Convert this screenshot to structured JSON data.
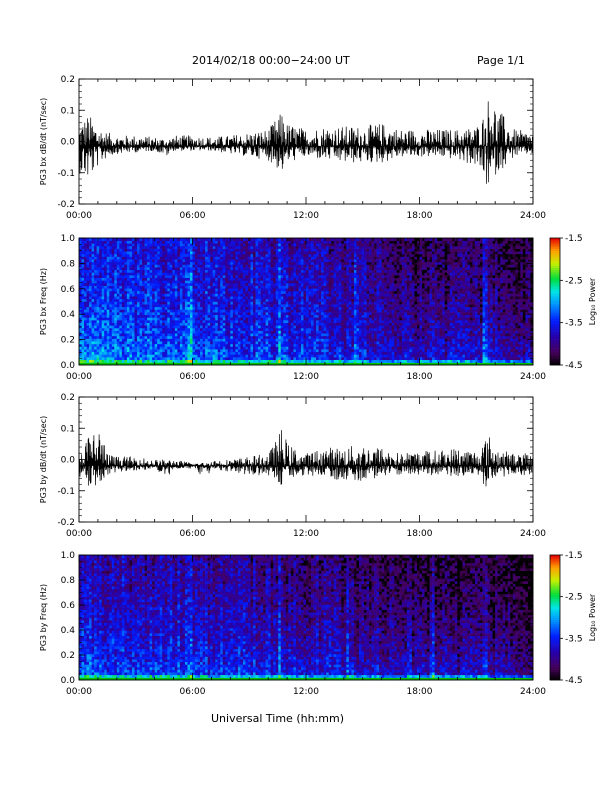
{
  "header": {
    "title": "2014/02/18   00:00−24:00 UT",
    "page": "Page 1/1"
  },
  "footer": {
    "xlabel": "Universal Time (hh:mm)"
  },
  "colorbar": {
    "label": "Log₁₀ Power",
    "ticks": [
      "-1.5",
      "-2.5",
      "-3.5",
      "-4.5"
    ],
    "range": [
      -4.5,
      -1.5
    ]
  },
  "x_ticks": [
    "00:00",
    "06:00",
    "12:00",
    "18:00",
    "24:00"
  ],
  "chart_data": [
    {
      "type": "line",
      "ylabel": "PG3 bx dB/dt (nT/sec)",
      "x_range_hours": [
        0,
        24
      ],
      "ylim": [
        -0.2,
        0.2
      ],
      "yticks": [
        "0.2",
        "0.1",
        "0.0",
        "-0.1",
        "-0.2"
      ],
      "baseline": -0.015,
      "series": [
        {
          "x_hours": [
            0.0,
            0.5,
            1.0,
            1.5,
            2.0,
            3.0,
            4.0,
            4.7,
            5.0,
            6.0,
            7.0,
            8.0,
            9.0,
            10.0,
            10.5,
            10.8,
            11.0,
            12.0,
            13.0,
            14.0,
            15.0,
            16.0,
            17.0,
            18.0,
            19.0,
            20.0,
            21.0,
            21.5,
            21.8,
            22.0,
            23.0,
            24.0
          ],
          "envelope_max": [
            0.06,
            0.09,
            0.05,
            0.03,
            0.02,
            0.02,
            0.015,
            0.01,
            0.02,
            0.02,
            0.015,
            0.02,
            0.03,
            0.04,
            0.08,
            0.1,
            0.06,
            0.04,
            0.05,
            0.05,
            0.05,
            0.06,
            0.04,
            0.04,
            0.04,
            0.04,
            0.05,
            0.1,
            0.2,
            0.12,
            0.04,
            0.03
          ],
          "envelope_min": [
            -0.1,
            -0.13,
            -0.08,
            -0.05,
            -0.04,
            -0.035,
            -0.03,
            -0.05,
            -0.03,
            -0.03,
            -0.03,
            -0.04,
            -0.05,
            -0.06,
            -0.09,
            -0.1,
            -0.07,
            -0.05,
            -0.06,
            -0.07,
            -0.07,
            -0.07,
            -0.05,
            -0.05,
            -0.05,
            -0.06,
            -0.08,
            -0.14,
            -0.18,
            -0.11,
            -0.05,
            -0.04
          ]
        }
      ]
    },
    {
      "type": "heatmap",
      "ylabel": "PG3 bx Freq (Hz)",
      "x_range_hours": [
        0,
        24
      ],
      "ylim": [
        0.0,
        1.0
      ],
      "yticks": [
        "1.0",
        "0.8",
        "0.6",
        "0.4",
        "0.2",
        "0.0"
      ],
      "colorbar_label": "Log₁₀ Power",
      "value_range": [
        -4.5,
        -1.5
      ],
      "description_levels": {
        "hours": [
          0,
          3,
          6,
          9,
          12,
          15,
          18,
          21,
          24
        ],
        "log_power_at_low_freq": [
          -2.6,
          -3.0,
          -3.0,
          -3.1,
          -3.2,
          -3.3,
          -3.4,
          -3.3,
          -3.5
        ],
        "log_power_at_high_freq": [
          -3.6,
          -3.7,
          -3.7,
          -3.8,
          -3.9,
          -4.0,
          -4.3,
          -4.2,
          -4.4
        ]
      },
      "bright_columns_hours": [
        5.9,
        10.6,
        14.7,
        21.5
      ]
    },
    {
      "type": "line",
      "ylabel": "PG3 by dB/dt (nT/sec)",
      "x_range_hours": [
        0,
        24
      ],
      "ylim": [
        -0.2,
        0.2
      ],
      "yticks": [
        "0.2",
        "0.1",
        "0.0",
        "-0.1",
        "-0.2"
      ],
      "baseline": -0.02,
      "series": [
        {
          "x_hours": [
            0.0,
            0.5,
            1.0,
            1.5,
            2.0,
            3.0,
            4.0,
            4.7,
            5.0,
            6.0,
            6.8,
            7.0,
            8.0,
            9.0,
            10.0,
            10.5,
            10.8,
            11.0,
            12.0,
            13.0,
            14.0,
            15.0,
            16.0,
            17.0,
            18.0,
            19.0,
            20.0,
            21.0,
            21.5,
            21.8,
            22.0,
            23.0,
            24.0
          ],
          "envelope_max": [
            0.03,
            0.08,
            0.12,
            0.02,
            0.01,
            0.01,
            0.0,
            0.0,
            0.0,
            -0.01,
            -0.01,
            0.0,
            0.0,
            0.01,
            0.02,
            0.07,
            0.12,
            0.05,
            0.02,
            0.04,
            0.04,
            0.05,
            0.04,
            0.02,
            0.03,
            0.03,
            0.04,
            0.03,
            0.07,
            0.08,
            0.04,
            0.02,
            0.02
          ],
          "envelope_min": [
            -0.06,
            -0.1,
            -0.08,
            -0.05,
            -0.04,
            -0.035,
            -0.03,
            -0.06,
            -0.03,
            -0.03,
            -0.07,
            -0.03,
            -0.04,
            -0.05,
            -0.05,
            -0.09,
            -0.08,
            -0.06,
            -0.05,
            -0.06,
            -0.07,
            -0.07,
            -0.06,
            -0.05,
            -0.05,
            -0.05,
            -0.06,
            -0.05,
            -0.09,
            -0.1,
            -0.06,
            -0.05,
            -0.05
          ]
        }
      ]
    },
    {
      "type": "heatmap",
      "ylabel": "PG3 by Freq (Hz)",
      "x_range_hours": [
        0,
        24
      ],
      "ylim": [
        0.0,
        1.0
      ],
      "yticks": [
        "1.0",
        "0.8",
        "0.6",
        "0.4",
        "0.2",
        "0.0"
      ],
      "colorbar_label": "Log₁₀ Power",
      "value_range": [
        -4.5,
        -1.5
      ],
      "description_levels": {
        "hours": [
          0,
          3,
          6,
          9,
          12,
          15,
          18,
          21,
          24
        ],
        "log_power_at_low_freq": [
          -2.8,
          -3.1,
          -3.1,
          -3.2,
          -3.2,
          -3.3,
          -3.4,
          -3.4,
          -3.6
        ],
        "log_power_at_high_freq": [
          -3.8,
          -3.9,
          -3.9,
          -4.0,
          -4.1,
          -4.2,
          -4.4,
          -4.4,
          -4.5
        ]
      },
      "bright_columns_hours": [
        5.9,
        10.6,
        14.2,
        17.5,
        18.7,
        21.5
      ]
    }
  ]
}
